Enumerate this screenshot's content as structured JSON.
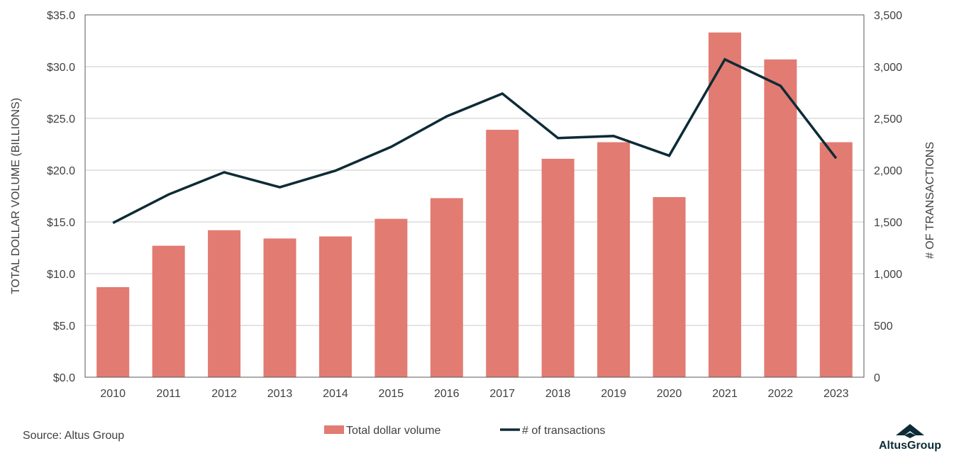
{
  "chart_data": {
    "type": "bar",
    "title": "",
    "categories": [
      "2010",
      "2011",
      "2012",
      "2013",
      "2014",
      "2015",
      "2016",
      "2017",
      "2018",
      "2019",
      "2020",
      "2021",
      "2022",
      "2023"
    ],
    "series": [
      {
        "name": "Total dollar volume",
        "type": "bar",
        "axis": "left",
        "color": "#e27b72",
        "values": [
          8.7,
          12.7,
          14.2,
          13.4,
          13.6,
          15.3,
          17.3,
          23.9,
          21.1,
          22.7,
          17.4,
          33.3,
          30.7,
          22.7
        ]
      },
      {
        "name": "# of transactions",
        "type": "line",
        "axis": "right",
        "color": "#0d2b36",
        "values": [
          1490,
          1765,
          1980,
          1835,
          1995,
          2225,
          2520,
          2740,
          2310,
          2330,
          2140,
          3070,
          2815,
          2115
        ]
      }
    ],
    "ylabel": "TOTAL DOLLAR VOLUME (BILLIONS)",
    "y2label": "# OF TRANSACTIONS",
    "ylim": [
      0,
      35
    ],
    "y2lim": [
      0,
      3500
    ],
    "yticks": [
      "$0.0",
      "$5.0",
      "$10.0",
      "$15.0",
      "$20.0",
      "$25.0",
      "$30.0",
      "$35.0"
    ],
    "y2ticks": [
      "0",
      "500",
      "1,000",
      "1,500",
      "2,000",
      "2,500",
      "3,000",
      "3,500"
    ],
    "grid": true,
    "legend_placement": "bottom"
  },
  "source": "Source:  Altus Group",
  "logo": {
    "text": "AltusGroup",
    "color": "#0d2b36"
  }
}
